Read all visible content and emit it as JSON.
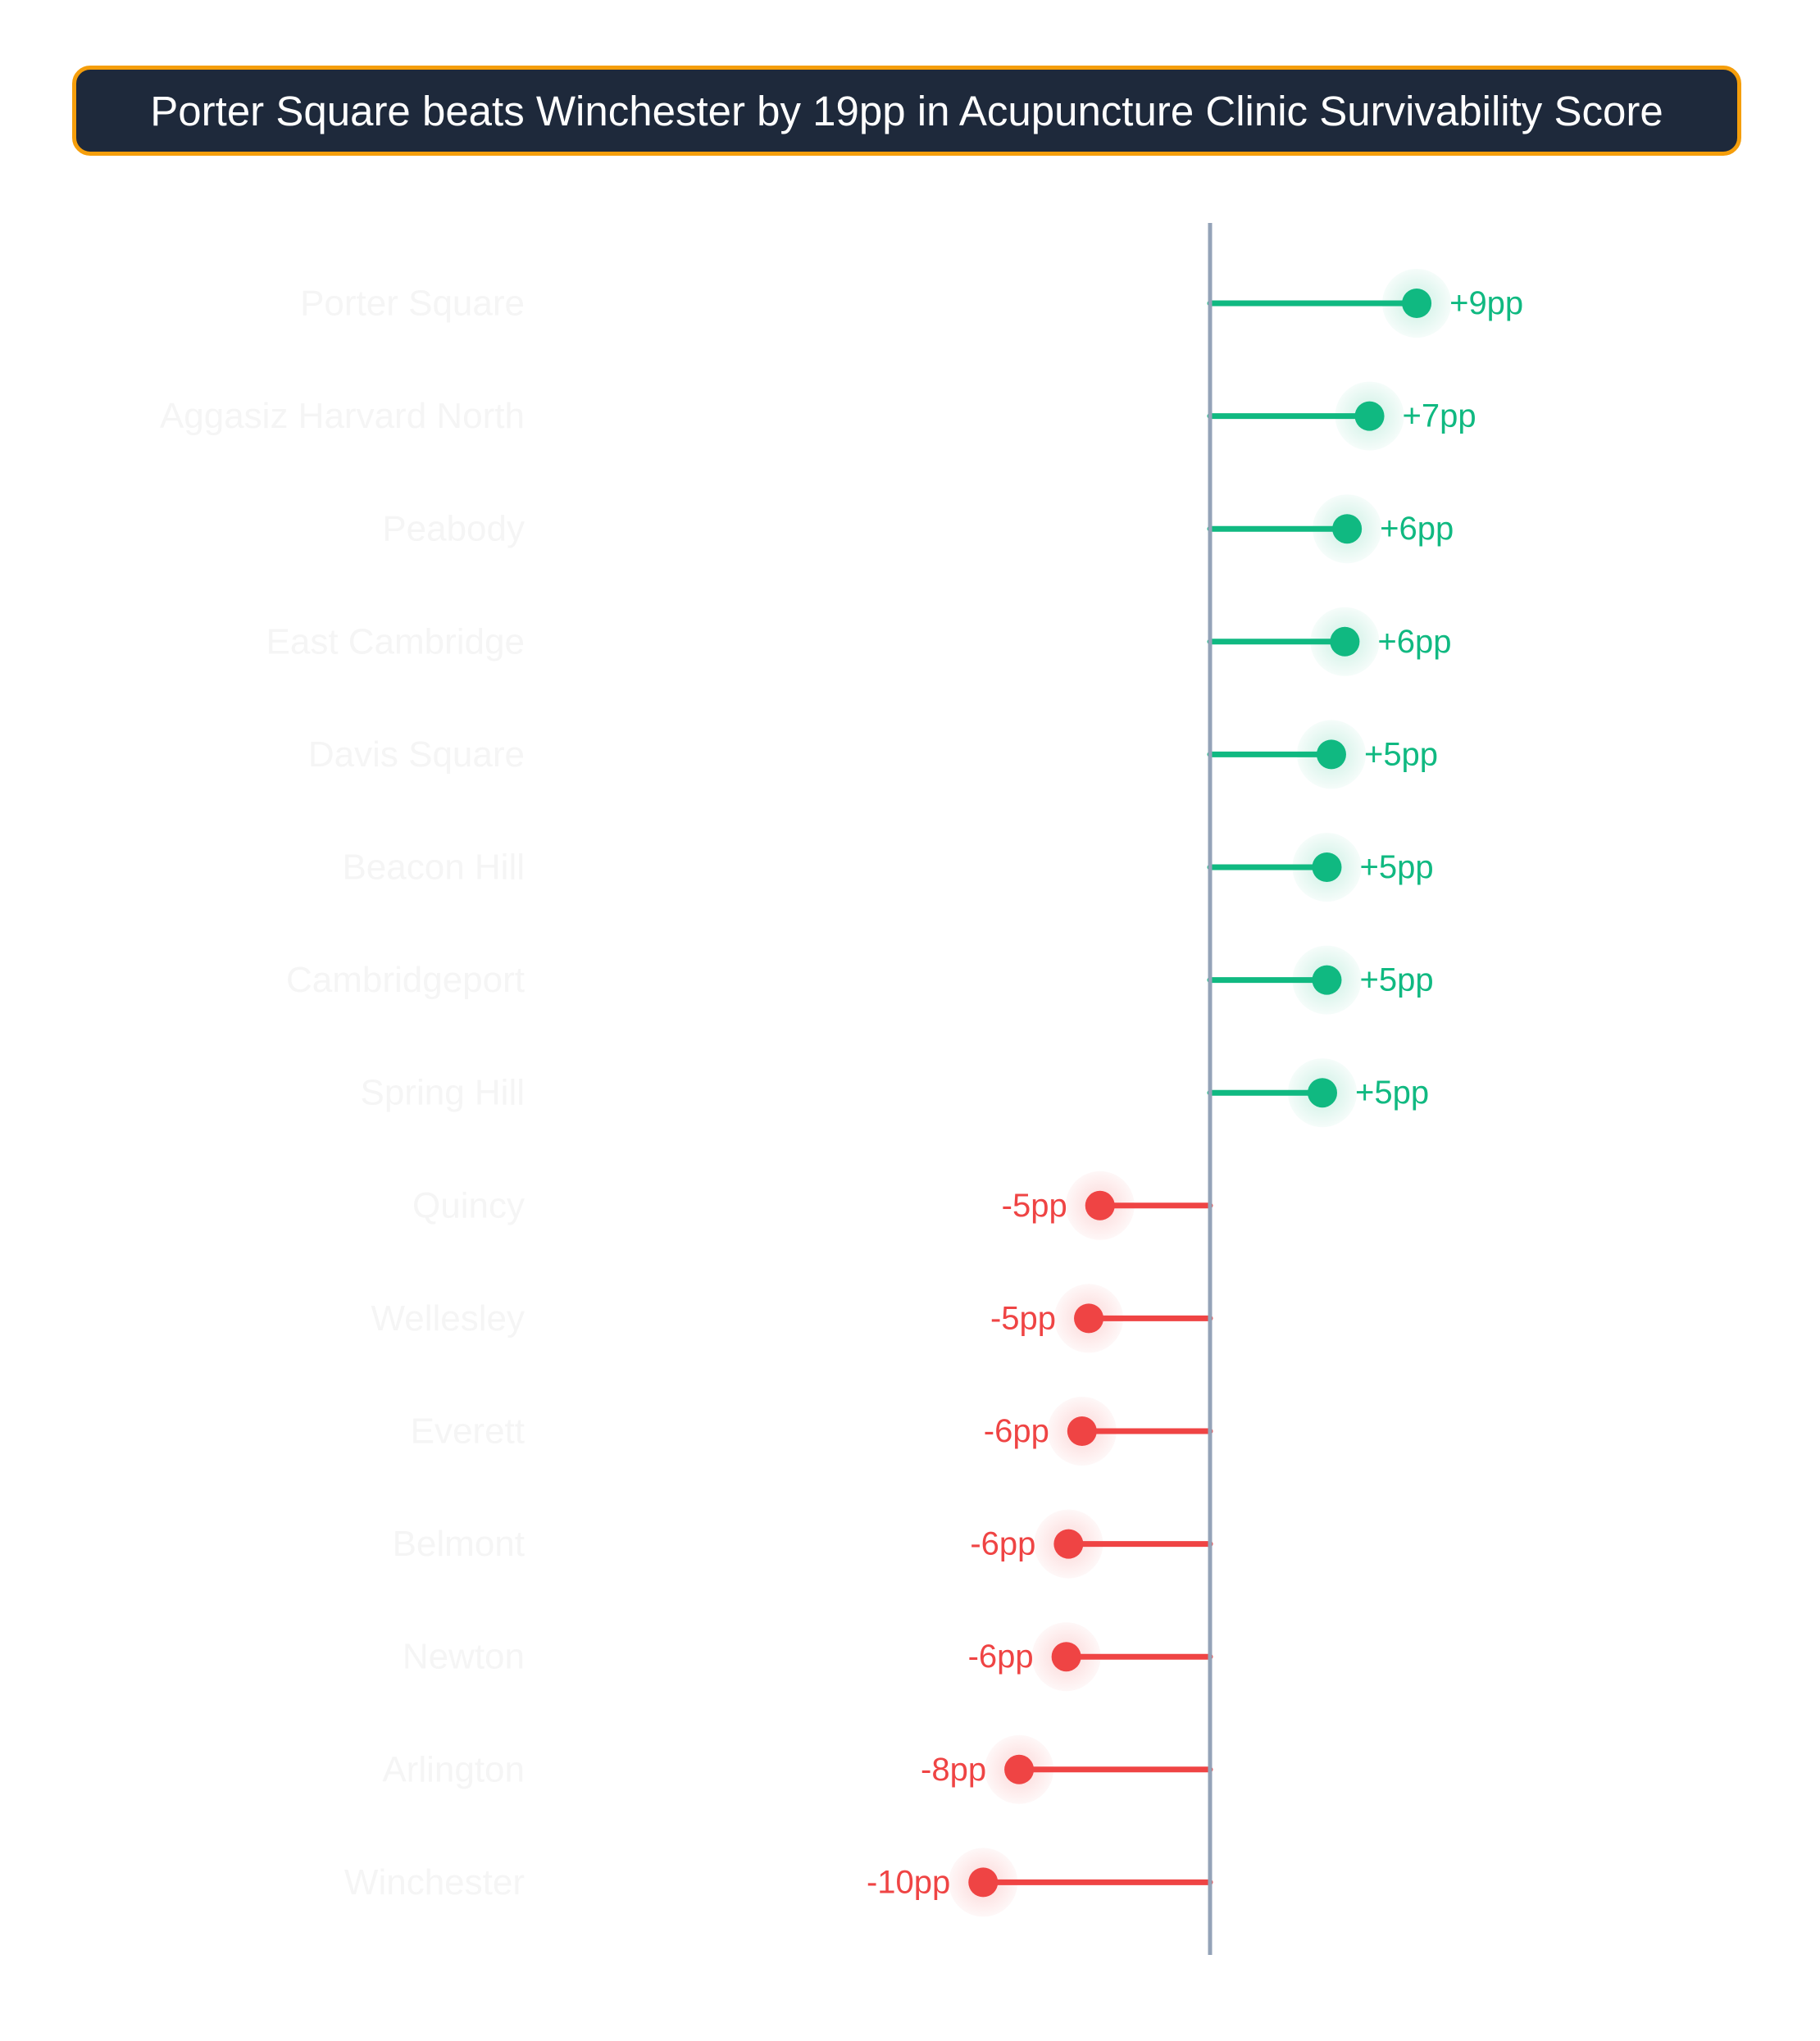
{
  "colors": {
    "positive": "#10b981",
    "negative": "#ef4444",
    "axis": "#94a3b8",
    "label": "#f5f5f5",
    "title_bg": "#1e293b",
    "title_border": "#f59e0b"
  },
  "chart_data": {
    "type": "lollipop",
    "title": "Porter Square beats Winchester by 19pp in Acupuncture Clinic Survivability Score",
    "xlabel": "",
    "ylabel": "",
    "unit_suffix": "pp",
    "xlim": [
      -10,
      9
    ],
    "grid": false,
    "legend": "none",
    "categories": [
      "Porter Square",
      "Aggasiz Harvard North",
      "Peabody",
      "East Cambridge",
      "Davis Square",
      "Beacon Hill",
      "Cambridgeport",
      "Spring Hill",
      "Quincy",
      "Wellesley",
      "Everett",
      "Belmont",
      "Newton",
      "Arlington",
      "Winchester"
    ],
    "values": [
      9.2,
      7.1,
      6.1,
      6.0,
      5.4,
      5.2,
      5.2,
      5.0,
      -4.9,
      -5.4,
      -5.7,
      -6.3,
      -6.4,
      -8.5,
      -10.1
    ],
    "value_labels": [
      "+9pp",
      "+7pp",
      "+6pp",
      "+6pp",
      "+5pp",
      "+5pp",
      "+5pp",
      "+5pp",
      "-5pp",
      "-5pp",
      "-6pp",
      "-6pp",
      "-6pp",
      "-8pp",
      "-10pp"
    ]
  }
}
